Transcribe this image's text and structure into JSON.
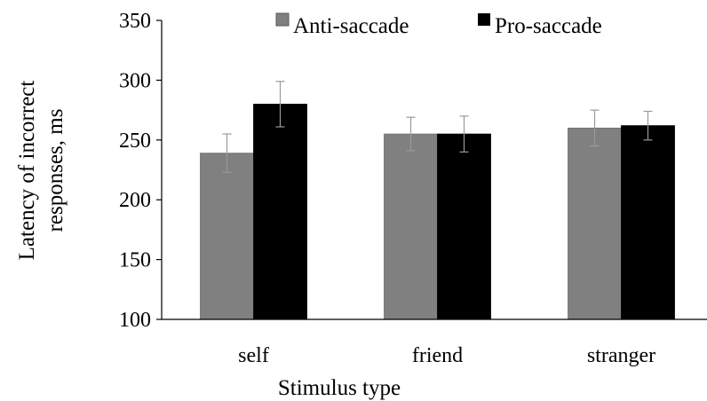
{
  "chart_data": {
    "type": "bar",
    "categories": [
      "self",
      "friend",
      "stranger"
    ],
    "series": [
      {
        "name": "Anti-saccade",
        "values": [
          239,
          255,
          260
        ],
        "errors": [
          16,
          14,
          15
        ],
        "color": "#808080"
      },
      {
        "name": "Pro-saccade",
        "values": [
          280,
          255,
          262
        ],
        "errors": [
          19,
          15,
          12
        ],
        "color": "#000000"
      }
    ],
    "xlabel": "Stimulus type",
    "ylabel_lines": [
      "Latency of incorrect",
      "responses, ms"
    ],
    "ylim": [
      100,
      350
    ],
    "yticks": [
      100,
      150,
      200,
      250,
      300,
      350
    ],
    "grid": false,
    "legend_position": "top"
  }
}
